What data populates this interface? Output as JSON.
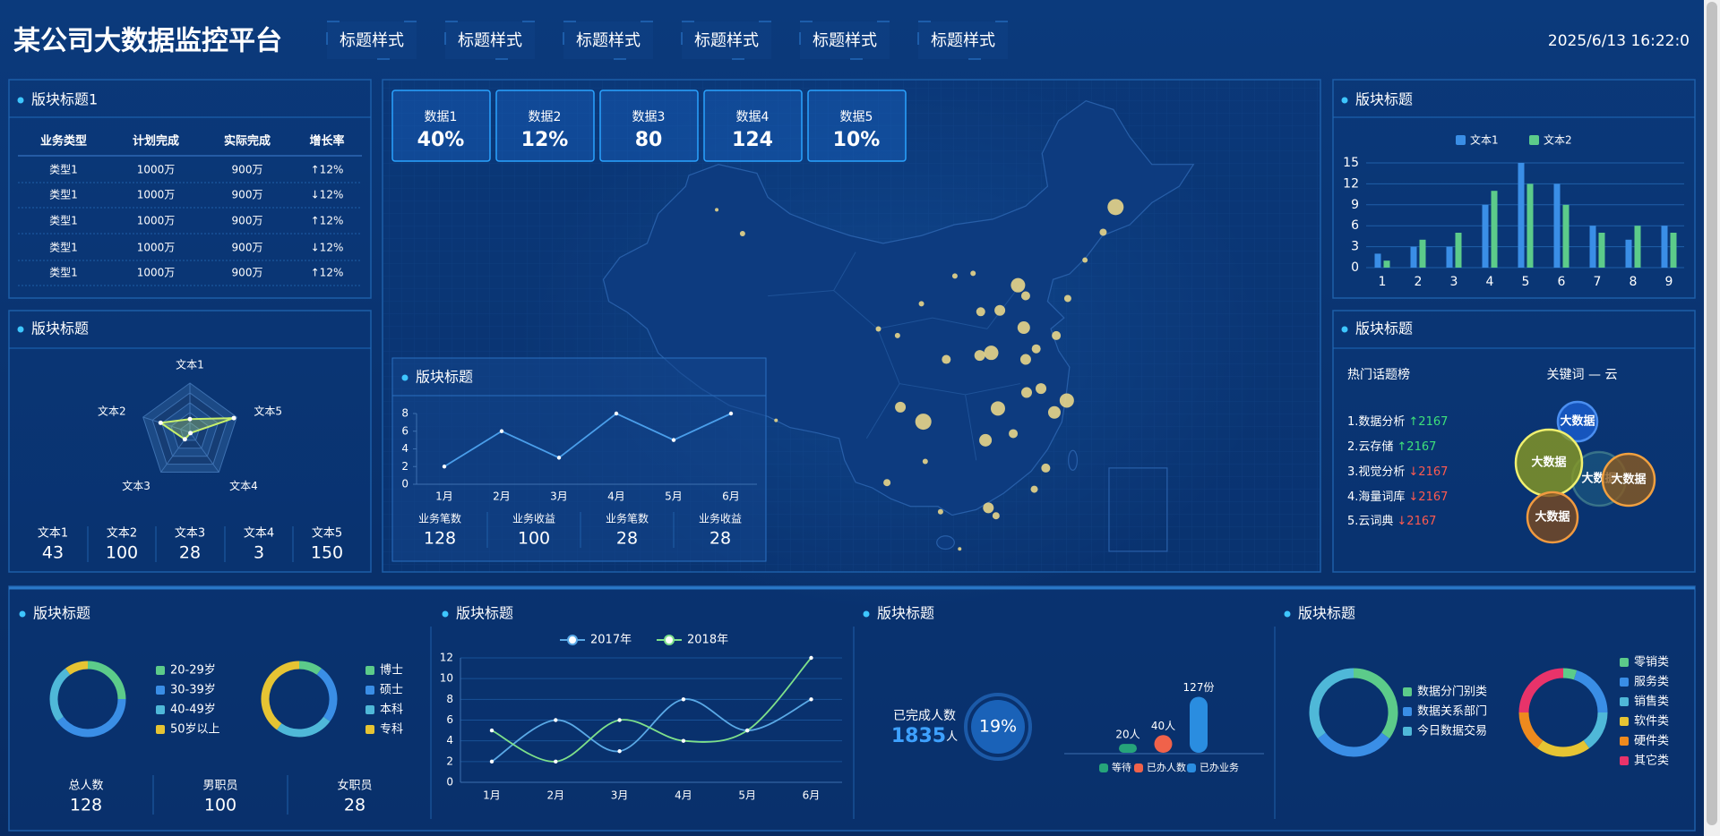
{
  "header": {
    "title": "某公司大数据监控平台",
    "nav": [
      "标题样式",
      "标题样式",
      "标题样式",
      "标题样式",
      "标题样式",
      "标题样式"
    ],
    "datetime": "2025/6/13 16:22:0"
  },
  "table_panel": {
    "title": "版块标题1",
    "columns": [
      "业务类型",
      "计划完成",
      "实际完成",
      "增长率"
    ],
    "rows": [
      [
        "类型1",
        "1000万",
        "900万",
        "↑12%"
      ],
      [
        "类型1",
        "1000万",
        "900万",
        "↓12%"
      ],
      [
        "类型1",
        "1000万",
        "900万",
        "↑12%"
      ],
      [
        "类型1",
        "1000万",
        "900万",
        "↓12%"
      ],
      [
        "类型1",
        "1000万",
        "900万",
        "↑12%"
      ]
    ]
  },
  "radar_panel": {
    "title": "版块标题",
    "chart_data": {
      "type": "radar",
      "indicators": [
        "文本1",
        "文本2",
        "文本3",
        "文本4",
        "文本5"
      ],
      "values": [
        43,
        100,
        28,
        3,
        150
      ],
      "rlim": [
        0,
        160
      ],
      "color": "#c8f06a"
    }
  },
  "center_panel": {
    "kpis": [
      {
        "label": "数据1",
        "value": "40%"
      },
      {
        "label": "数据2",
        "value": "12%"
      },
      {
        "label": "数据3",
        "value": "80"
      },
      {
        "label": "数据4",
        "value": "124"
      },
      {
        "label": "数据5",
        "value": "10%"
      }
    ],
    "map": {
      "color": "#e8d68a",
      "points": [
        {
          "lon": 116.4,
          "lat": 39.9,
          "size": 8
        },
        {
          "lon": 117.2,
          "lat": 39.1,
          "size": 5
        },
        {
          "lon": 114.5,
          "lat": 38.0,
          "size": 6
        },
        {
          "lon": 112.5,
          "lat": 37.9,
          "size": 5
        },
        {
          "lon": 117.0,
          "lat": 36.7,
          "size": 7
        },
        {
          "lon": 120.4,
          "lat": 36.1,
          "size": 5
        },
        {
          "lon": 113.6,
          "lat": 34.8,
          "size": 8
        },
        {
          "lon": 108.9,
          "lat": 34.3,
          "size": 5
        },
        {
          "lon": 118.8,
          "lat": 32.1,
          "size": 6
        },
        {
          "lon": 121.5,
          "lat": 31.2,
          "size": 8
        },
        {
          "lon": 120.2,
          "lat": 30.3,
          "size": 7
        },
        {
          "lon": 117.3,
          "lat": 31.8,
          "size": 6
        },
        {
          "lon": 114.3,
          "lat": 30.6,
          "size": 8
        },
        {
          "lon": 113.0,
          "lat": 28.2,
          "size": 7
        },
        {
          "lon": 115.9,
          "lat": 28.7,
          "size": 5
        },
        {
          "lon": 119.3,
          "lat": 26.1,
          "size": 5
        },
        {
          "lon": 113.3,
          "lat": 23.1,
          "size": 6
        },
        {
          "lon": 114.1,
          "lat": 22.5,
          "size": 4
        },
        {
          "lon": 106.5,
          "lat": 29.6,
          "size": 9
        },
        {
          "lon": 104.1,
          "lat": 30.7,
          "size": 6
        },
        {
          "lon": 102.7,
          "lat": 25.0,
          "size": 4
        },
        {
          "lon": 106.7,
          "lat": 26.6,
          "size": 3
        },
        {
          "lon": 108.3,
          "lat": 22.8,
          "size": 3
        },
        {
          "lon": 110.3,
          "lat": 20.0,
          "size": 2
        },
        {
          "lon": 126.6,
          "lat": 45.8,
          "size": 9
        },
        {
          "lon": 125.3,
          "lat": 43.9,
          "size": 4
        },
        {
          "lon": 123.4,
          "lat": 41.8,
          "size": 3
        },
        {
          "lon": 121.6,
          "lat": 38.9,
          "size": 4
        },
        {
          "lon": 103.8,
          "lat": 36.1,
          "size": 3
        },
        {
          "lon": 101.8,
          "lat": 36.6,
          "size": 3
        },
        {
          "lon": 106.3,
          "lat": 38.5,
          "size": 3
        },
        {
          "lon": 111.7,
          "lat": 40.8,
          "size": 3
        },
        {
          "lon": 87.6,
          "lat": 43.8,
          "size": 3
        },
        {
          "lon": 84.9,
          "lat": 45.6,
          "size": 2
        },
        {
          "lon": 91.1,
          "lat": 29.7,
          "size": 2
        },
        {
          "lon": 118.1,
          "lat": 24.5,
          "size": 4
        },
        {
          "lon": 109.8,
          "lat": 40.6,
          "size": 3
        },
        {
          "lon": 112.4,
          "lat": 34.6,
          "size": 6
        },
        {
          "lon": 117.2,
          "lat": 34.3,
          "size": 6
        },
        {
          "lon": 118.3,
          "lat": 35.1,
          "size": 5
        }
      ]
    },
    "line_panel": {
      "title": "版块标题",
      "chart_data": {
        "type": "line",
        "categories": [
          "1月",
          "2月",
          "3月",
          "4月",
          "5月",
          "6月"
        ],
        "values": [
          2,
          6,
          3,
          8,
          5,
          8
        ],
        "ylim": [
          0,
          8
        ],
        "yticks": [
          0,
          2,
          4,
          6,
          8
        ],
        "color": "#4a9eea"
      },
      "stats": [
        {
          "label": "业务笔数",
          "value": 128
        },
        {
          "label": "业务收益",
          "value": 100
        },
        {
          "label": "业务笔数",
          "value": 28
        },
        {
          "label": "业务收益",
          "value": 28
        }
      ]
    }
  },
  "bar_panel": {
    "title": "版块标题",
    "chart_data": {
      "type": "bar",
      "categories": [
        "1",
        "2",
        "3",
        "4",
        "5",
        "6",
        "7",
        "8",
        "9"
      ],
      "series": [
        {
          "name": "文本1",
          "color": "#3a8ee6",
          "values": [
            2,
            3,
            3,
            9,
            15,
            12,
            6,
            4,
            6
          ]
        },
        {
          "name": "文本2",
          "color": "#5ccb8a",
          "values": [
            1,
            4,
            5,
            11,
            12,
            9,
            5,
            6,
            5
          ]
        }
      ],
      "ylim": [
        0,
        15
      ],
      "yticks": [
        0,
        3,
        6,
        9,
        12,
        15
      ],
      "grid": true
    }
  },
  "topic_panel": {
    "title": "版块标题",
    "list_title": "热门话题榜",
    "cloud_title": "关键词 — 云",
    "topics": [
      {
        "name": "1.数据分析",
        "change": "↑2167"
      },
      {
        "name": "2.云存储",
        "change": "↑2167"
      },
      {
        "name": "3.视觉分析",
        "change": "↓2167"
      },
      {
        "name": "4.海量词库",
        "change": "↓2167"
      },
      {
        "name": "5.云词典",
        "change": "↓2167"
      }
    ],
    "cloud_words": [
      "大数据",
      "大数据",
      "大数据",
      "大数据",
      "大数据"
    ]
  },
  "bottom": {
    "age_panel": {
      "title": "版块标题",
      "charts": [
        {
          "type": "pie",
          "categories": [
            "20-29岁",
            "30-39岁",
            "40-49岁",
            "50岁以上"
          ],
          "values": [
            25,
            40,
            25,
            10
          ],
          "colors": [
            "#5ccb8a",
            "#3a8ee6",
            "#4fb8d8",
            "#e6c433"
          ]
        },
        {
          "type": "pie",
          "categories": [
            "博士",
            "硕士",
            "本科",
            "专科"
          ],
          "values": [
            10,
            25,
            25,
            40
          ],
          "colors": [
            "#5ccb8a",
            "#3a8ee6",
            "#4fb8d8",
            "#e6c433"
          ]
        }
      ],
      "stats": [
        {
          "label": "总人数",
          "value": 128
        },
        {
          "label": "男职员",
          "value": 100
        },
        {
          "label": "女职员",
          "value": 28
        }
      ]
    },
    "trend_panel": {
      "title": "版块标题",
      "chart_data": {
        "type": "line",
        "categories": [
          "1月",
          "2月",
          "3月",
          "4月",
          "5月",
          "6月"
        ],
        "series": [
          {
            "name": "2017年",
            "color": "#5aa9e6",
            "values": [
              2,
              6,
              3,
              8,
              5,
              8
            ]
          },
          {
            "name": "2018年",
            "color": "#7ee08a",
            "values": [
              5,
              2,
              6,
              4,
              5,
              12
            ]
          }
        ],
        "ylim": [
          0,
          12
        ],
        "yticks": [
          0,
          2,
          4,
          6,
          8,
          10,
          12
        ],
        "grid": true,
        "smooth": true
      }
    },
    "task_panel": {
      "title": "版块标题",
      "done_label": "已完成人数",
      "done_value": 1835,
      "done_unit": "人",
      "rate": "19%",
      "chart_data": {
        "type": "bar",
        "categories": [
          "等待",
          "已办人数",
          "已办业务"
        ],
        "values": [
          20,
          40,
          127
        ],
        "value_labels": [
          "20人",
          "40人",
          "127份"
        ],
        "colors": [
          "#26a47a",
          "#f0624a",
          "#2a8de0"
        ],
        "ylim": [
          0,
          130
        ]
      }
    },
    "data_panel": {
      "title": "版块标题",
      "charts": [
        {
          "type": "pie",
          "categories": [
            "数据分门别类",
            "数据关系部门",
            "今日数据交易"
          ],
          "values": [
            35,
            30,
            35
          ],
          "colors": [
            "#5ccb8a",
            "#3a8ee6",
            "#4fb8d8"
          ]
        },
        {
          "type": "pie",
          "categories": [
            "零销类",
            "服务类",
            "销售类",
            "软件类",
            "硬件类",
            "其它类"
          ],
          "values": [
            5,
            20,
            15,
            20,
            15,
            25
          ],
          "colors": [
            "#5ccb8a",
            "#3a8ee6",
            "#4fb8d8",
            "#e6c433",
            "#ee8a1e",
            "#e8336a"
          ]
        }
      ]
    }
  }
}
